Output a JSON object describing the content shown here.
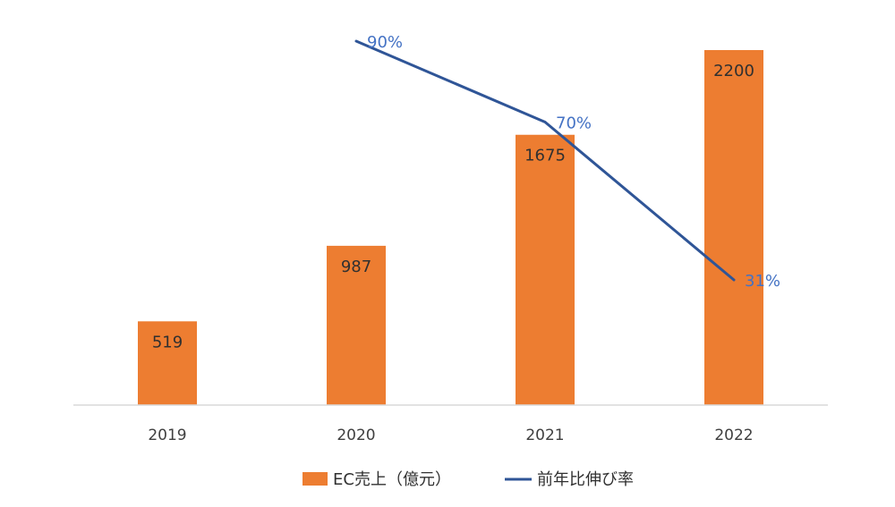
{
  "chart_data": {
    "type": "bar",
    "categories": [
      "2019",
      "2020",
      "2021",
      "2022"
    ],
    "series": [
      {
        "name": "EC売上（億元）",
        "type": "bar",
        "axis": "left",
        "values": [
          519,
          987,
          1675,
          2200
        ],
        "labels": [
          "519",
          "987",
          "1675",
          "2200"
        ],
        "color": "#ED7D31"
      },
      {
        "name": "前年比伸び率",
        "type": "line",
        "axis": "right",
        "values": [
          null,
          90,
          70,
          31
        ],
        "labels": [
          "",
          "90%",
          "70%",
          "31%"
        ],
        "color": "#2F5597",
        "label_color": "#4472C4"
      }
    ],
    "ylim": [
      0,
      2500
    ],
    "y2lim": [
      0,
      100
    ],
    "grid": false,
    "legend_position": "bottom",
    "title": "",
    "xlabel": "",
    "ylabel": ""
  }
}
